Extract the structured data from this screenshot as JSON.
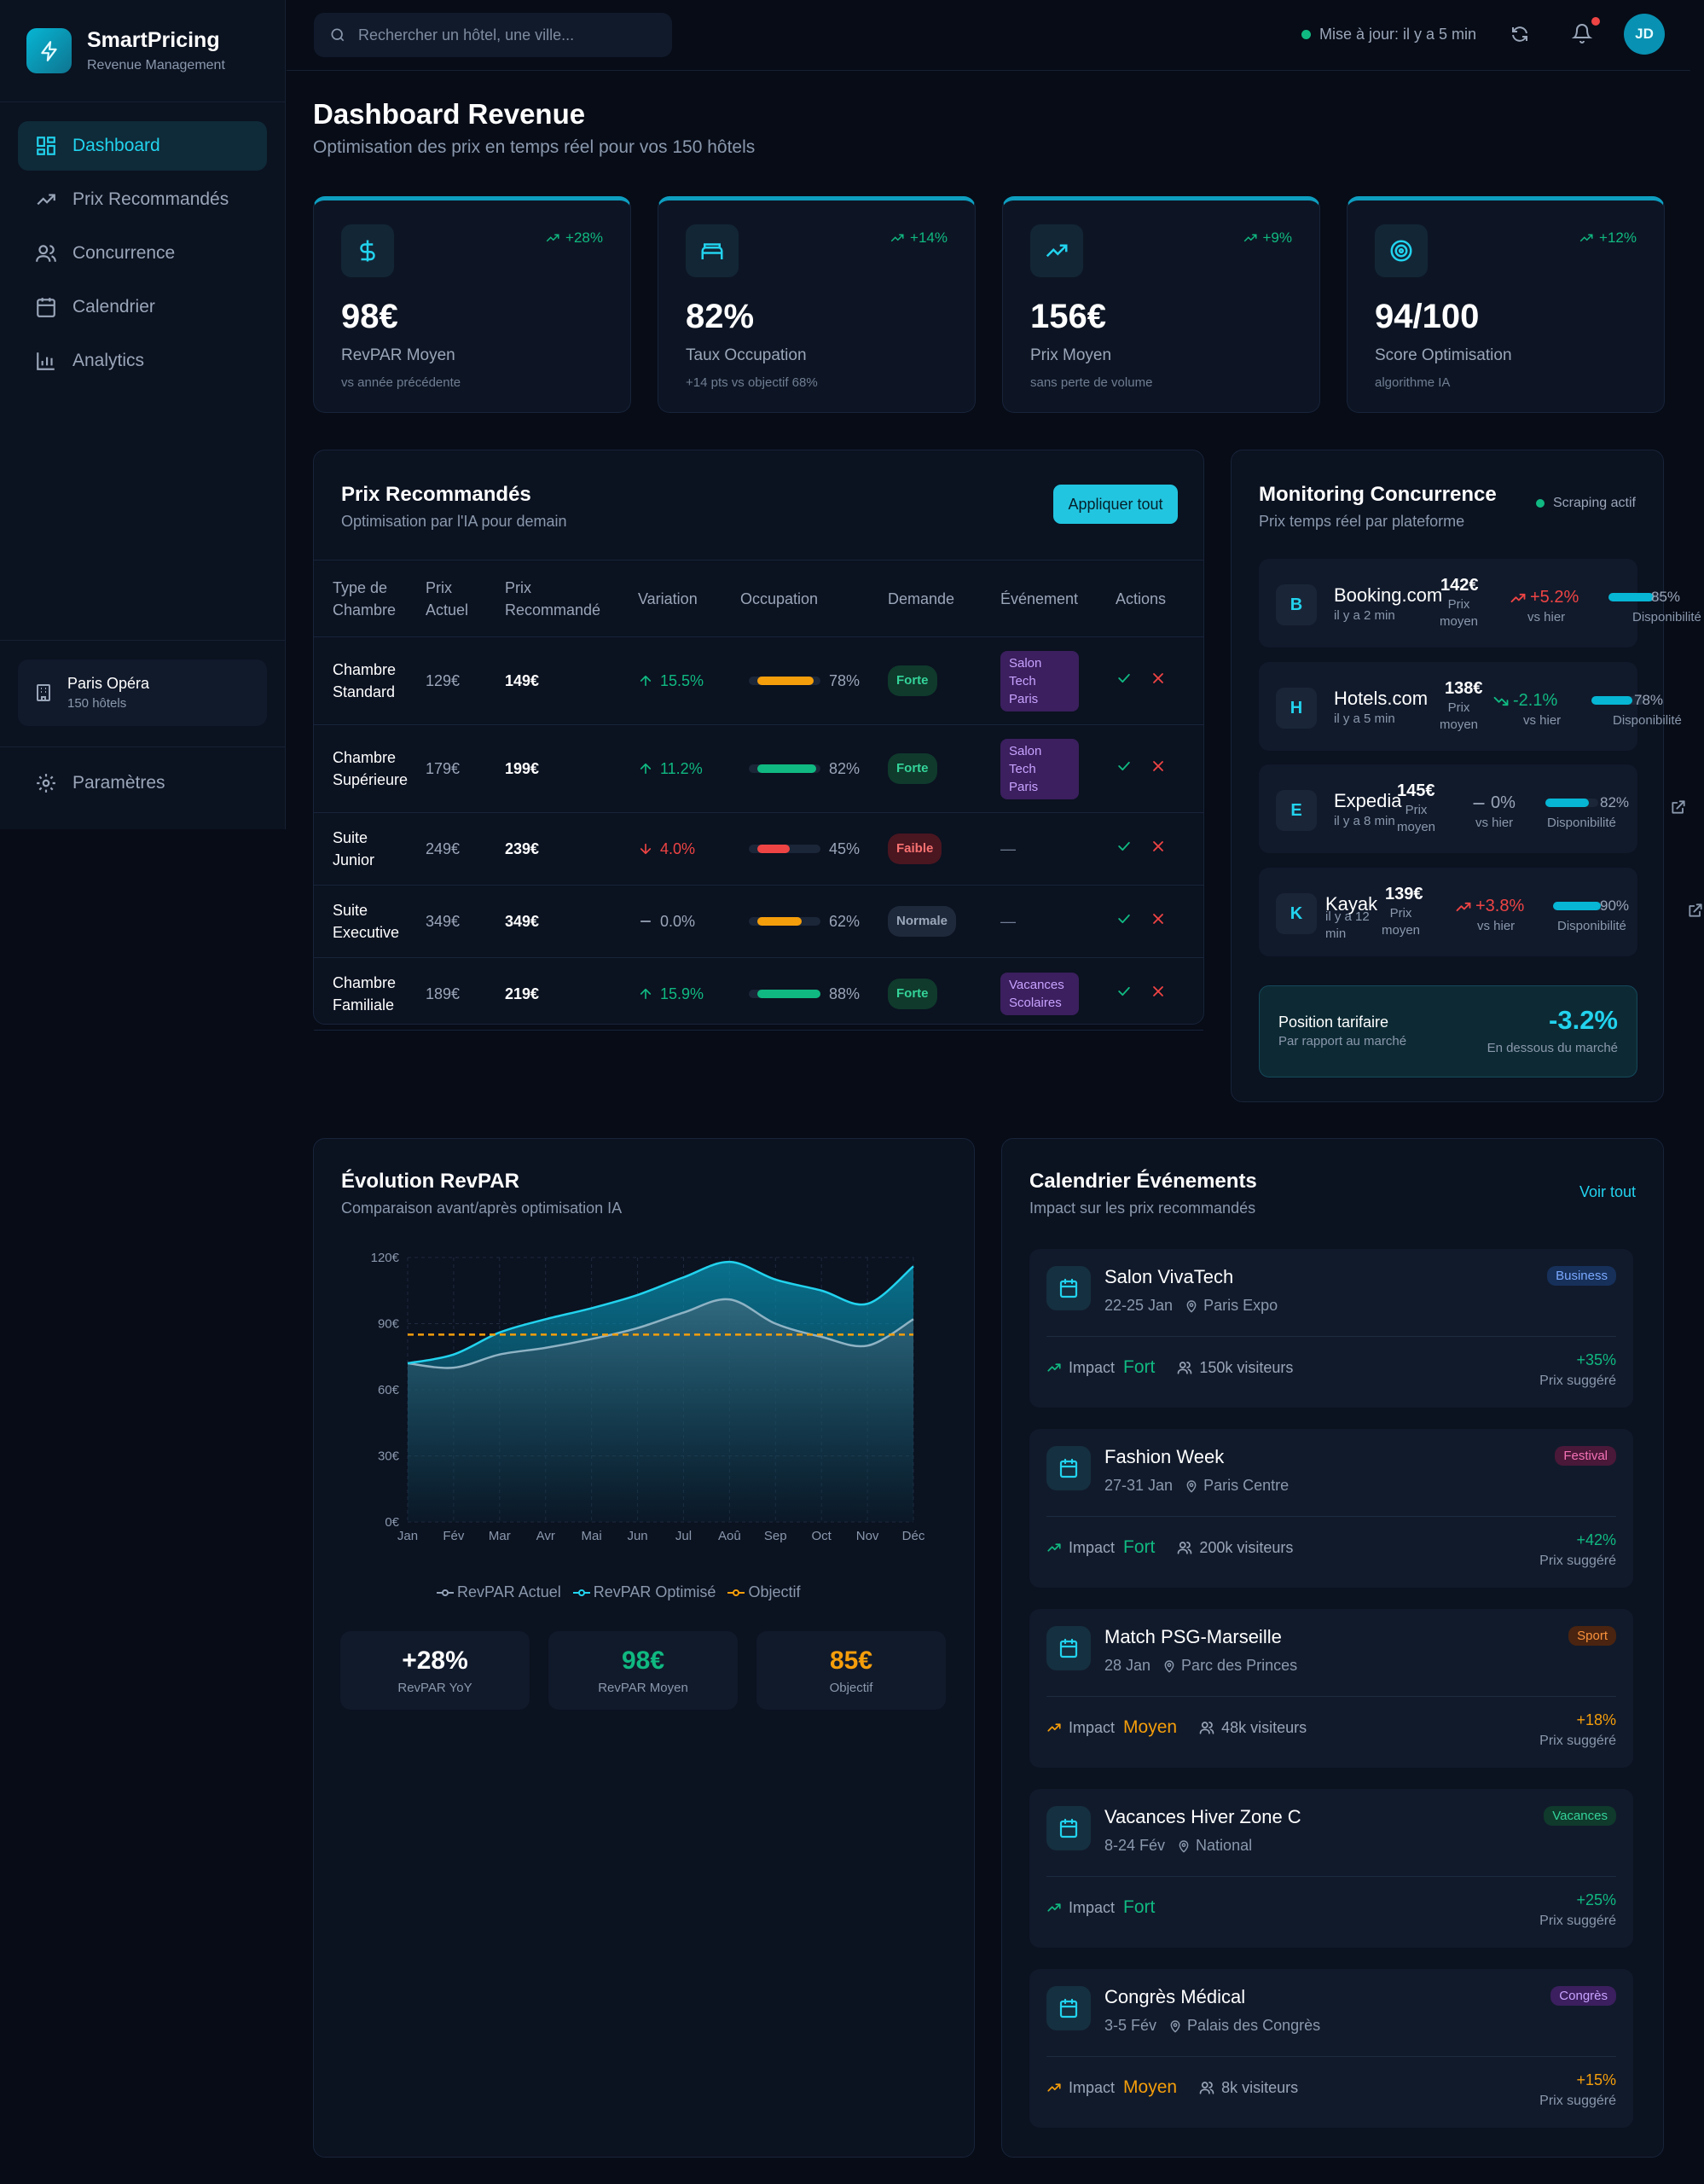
{
  "brand": {
    "name": "SmartPricing",
    "subtitle": "Revenue Management"
  },
  "nav": {
    "items": [
      {
        "label": "Dashboard",
        "icon": "dashboard-icon",
        "active": true
      },
      {
        "label": "Prix Recommandés",
        "icon": "trending-up-icon"
      },
      {
        "label": "Concurrence",
        "icon": "users-icon"
      },
      {
        "label": "Calendrier",
        "icon": "calendar-icon"
      },
      {
        "label": "Analytics",
        "icon": "bar-chart-icon"
      }
    ],
    "settings": "Paramètres"
  },
  "hotel": {
    "name": "Paris Opéra",
    "count": "150 hôtels"
  },
  "topbar": {
    "search_placeholder": "Rechercher un hôtel, une ville...",
    "update": "Mise à jour: il y a 5 min",
    "avatar": "JD"
  },
  "page": {
    "title": "Dashboard Revenue",
    "subtitle": "Optimisation des prix en temps réel pour vos 150 hôtels"
  },
  "kpis": [
    {
      "value": "98€",
      "label": "RevPAR Moyen",
      "note": "vs année précédente",
      "change": "+28%",
      "icon": "dollar-icon"
    },
    {
      "value": "82%",
      "label": "Taux Occupation",
      "note": "+14 pts vs objectif 68%",
      "change": "+14%",
      "icon": "bed-icon"
    },
    {
      "value": "156€",
      "label": "Prix Moyen",
      "note": "sans perte de volume",
      "change": "+9%",
      "icon": "trending-up-icon"
    },
    {
      "value": "94/100",
      "label": "Score Optimisation",
      "note": "algorithme IA",
      "change": "+12%",
      "icon": "target-icon"
    }
  ],
  "prices": {
    "title": "Prix Recommandés",
    "subtitle": "Optimisation par l'IA pour demain",
    "apply": "Appliquer tout",
    "headers": {
      "type1": "Type de",
      "type2": "Chambre",
      "cur1": "Prix",
      "cur2": "Actuel",
      "rec1": "Prix",
      "rec2": "Recommandé",
      "variation": "Variation",
      "occupation": "Occupation",
      "demande": "Demande",
      "evenement": "Événement",
      "actions": "Actions"
    },
    "rows": [
      {
        "l1": "Chambre",
        "l2": "Standard",
        "cur": "129€",
        "rec": "149€",
        "var": "15.5%",
        "dir": "up",
        "occ": "78%",
        "occ_frac": 0.78,
        "occ_color": "#f59e0b",
        "dem": "Forte",
        "dem_cls": "forte",
        "ev1": "Salon",
        "ev2": "Tech",
        "ev3": "Paris"
      },
      {
        "l1": "Chambre",
        "l2": "Supérieure",
        "cur": "179€",
        "rec": "199€",
        "var": "11.2%",
        "dir": "up",
        "occ": "82%",
        "occ_frac": 0.82,
        "occ_color": "#10b981",
        "dem": "Forte",
        "dem_cls": "forte",
        "ev1": "Salon",
        "ev2": "Tech",
        "ev3": "Paris"
      },
      {
        "l1": "Suite",
        "l2": "Junior",
        "cur": "249€",
        "rec": "239€",
        "var": "4.0%",
        "dir": "down",
        "occ": "45%",
        "occ_frac": 0.45,
        "occ_color": "#ef4444",
        "dem": "Faible",
        "dem_cls": "faible",
        "ev_none": "—"
      },
      {
        "l1": "Suite",
        "l2": "Executive",
        "cur": "349€",
        "rec": "349€",
        "var": "0.0%",
        "dir": "flat",
        "occ": "62%",
        "occ_frac": 0.62,
        "occ_color": "#f59e0b",
        "dem": "Normale",
        "dem_cls": "normale",
        "ev_none": "—"
      },
      {
        "l1": "Chambre",
        "l2": "Familiale",
        "cur": "189€",
        "rec": "219€",
        "var": "15.9%",
        "dir": "up",
        "occ": "88%",
        "occ_frac": 0.88,
        "occ_color": "#10b981",
        "dem": "Forte",
        "dem_cls": "forte",
        "ev1": "Vacances",
        "ev2": "Scolaires"
      }
    ]
  },
  "monitoring": {
    "title": "Monitoring Concurrence",
    "subtitle": "Prix temps réel par plateforme",
    "status": "Scraping actif",
    "price_label1": "Prix",
    "price_label2": "moyen",
    "var_label": "vs hier",
    "avail_label": "Disponibilité",
    "items": [
      {
        "badge": "B",
        "name": "Booking.com",
        "ago": "il y a 2 min",
        "price": "142€",
        "var": "+5.2%",
        "dir": "up",
        "avail": "85%",
        "frac": 0.85
      },
      {
        "badge": "H",
        "name": "Hotels.com",
        "ago": "il y a 5 min",
        "price": "138€",
        "var": "-2.1%",
        "dir": "down",
        "avail": "78%",
        "frac": 0.78
      },
      {
        "badge": "E",
        "name": "Expedia",
        "ago": "il y a 8 min",
        "price": "145€",
        "var": "0%",
        "dir": "flat",
        "avail": "82%",
        "frac": 0.82
      },
      {
        "badge": "K",
        "name": "Kayak",
        "ago1": "il y a 12",
        "ago2": "min",
        "price": "139€",
        "var": "+3.8%",
        "dir": "up",
        "avail": "90%",
        "frac": 0.9
      }
    ],
    "position": {
      "title": "Position tarifaire",
      "subtitle": "Par rapport au marché",
      "value": "-3.2%",
      "note": "En dessous du marché"
    }
  },
  "revpar": {
    "title": "Évolution RevPAR",
    "subtitle": "Comparaison avant/après optimisation IA",
    "legend": {
      "actuel": "RevPAR Actuel",
      "optimise": "RevPAR Optimisé",
      "objectif": "Objectif"
    },
    "stats": [
      {
        "value": "+28%",
        "label": "RevPAR YoY",
        "color": "#ffffff"
      },
      {
        "value": "98€",
        "label": "RevPAR Moyen",
        "color": "#10b981"
      },
      {
        "value": "85€",
        "label": "Objectif",
        "color": "#f59e0b"
      }
    ]
  },
  "chart_data": {
    "type": "area",
    "categories": [
      "Jan",
      "Fév",
      "Mar",
      "Avr",
      "Mai",
      "Jun",
      "Jul",
      "Aoû",
      "Sep",
      "Oct",
      "Nov",
      "Déc"
    ],
    "series": [
      {
        "name": "RevPAR Actuel",
        "values": [
          72,
          70,
          76,
          79,
          83,
          88,
          95,
          101,
          90,
          84,
          80,
          92
        ]
      },
      {
        "name": "RevPAR Optimisé",
        "values": [
          72,
          76,
          86,
          92,
          97,
          103,
          111,
          118,
          110,
          105,
          99,
          116
        ]
      },
      {
        "name": "Objectif",
        "values": [
          85,
          85,
          85,
          85,
          85,
          85,
          85,
          85,
          85,
          85,
          85,
          85
        ]
      }
    ],
    "yticks": [
      "0€",
      "30€",
      "60€",
      "90€",
      "120€"
    ],
    "ylim": [
      0,
      120
    ]
  },
  "events": {
    "title": "Calendrier Événements",
    "subtitle": "Impact sur les prix recommandés",
    "link": "Voir tout",
    "impact_label": "Impact",
    "suggest_label": "Prix suggéré",
    "items": [
      {
        "name": "Salon VivaTech",
        "date": "22-25 Jan",
        "place": "Paris Expo",
        "tag": "Business",
        "tag_bg": "#16305a",
        "tag_fg": "#7aa8ff",
        "impact": "Fort",
        "impact_color": "#10b981",
        "visitors": "150k visiteurs",
        "pct": "+35%"
      },
      {
        "name": "Fashion Week",
        "date": "27-31 Jan",
        "place": "Paris Centre",
        "tag": "Festival",
        "tag_bg": "#4a1838",
        "tag_fg": "#f472b6",
        "impact": "Fort",
        "impact_color": "#10b981",
        "visitors": "200k visiteurs",
        "pct": "+42%"
      },
      {
        "name": "Match PSG-Marseille",
        "date": "28 Jan",
        "place": "Parc des Princes",
        "tag": "Sport",
        "tag_bg": "#4a2410",
        "tag_fg": "#fb923c",
        "impact": "Moyen",
        "impact_color": "#f59e0b",
        "visitors": "48k visiteurs",
        "pct": "+18%"
      },
      {
        "name": "Vacances Hiver Zone C",
        "date": "8-24 Fév",
        "place": "National",
        "tag": "Vacances",
        "tag_bg": "#0f3a2c",
        "tag_fg": "#34d399",
        "impact": "Fort",
        "impact_color": "#10b981",
        "visitors": "",
        "pct": "+25%"
      },
      {
        "name": "Congrès Médical",
        "date": "3-5 Fév",
        "place": "Palais des Congrès",
        "tag": "Congrès",
        "tag_bg": "#3b1f5e",
        "tag_fg": "#c8a2ff",
        "impact": "Moyen",
        "impact_color": "#f59e0b",
        "visitors": "8k visiteurs",
        "pct": "+15%"
      }
    ]
  }
}
